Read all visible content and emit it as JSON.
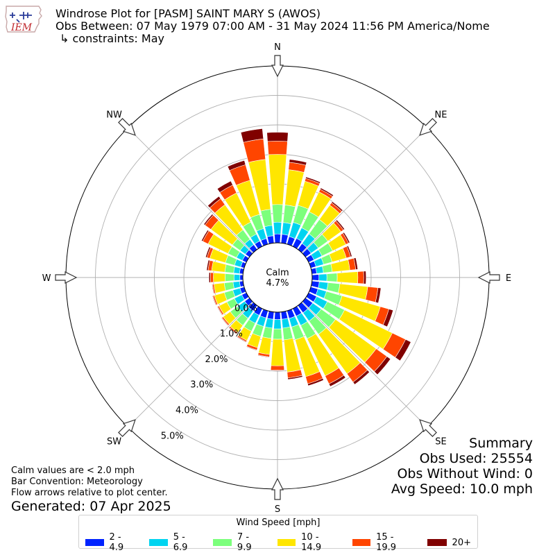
{
  "logo": {
    "text": "IEM",
    "icon": "iowa-state-outline-logo"
  },
  "header": {
    "title": "Windrose Plot for [PASM] SAINT MARY S (AWOS)",
    "subtitle": "Obs Between: 07 May 1979 07:00 AM - 31 May 2024 11:56 PM America/Nome",
    "constraints": "↳ constraints: May"
  },
  "summary": {
    "heading": "Summary",
    "obs_used": "Obs Used: 25554",
    "obs_without_wind": "Obs Without Wind: 0",
    "avg_speed": "Avg Speed: 10.0 mph"
  },
  "notes": {
    "calm": "Calm values are < 2.0 mph",
    "convention": "Bar Convention: Meteorology",
    "arrows": "Flow arrows relative to plot center."
  },
  "generated": "Generated: 07 Apr 2025",
  "chart_data": {
    "type": "windrose",
    "calm_label": "Calm",
    "calm_value": "4.7%",
    "calm_percent": 4.7,
    "radial_unit": "%",
    "radial_ticks": [
      0,
      1,
      2,
      3,
      4,
      5
    ],
    "radial_tick_labels": [
      "0.0%",
      "1.0%",
      "2.0%",
      "3.0%",
      "4.0%",
      "5.0%"
    ],
    "radial_max": 6.0,
    "compass_labels": [
      "N",
      "NE",
      "E",
      "SE",
      "S",
      "SW",
      "W",
      "NW"
    ],
    "directions": [
      0,
      10,
      20,
      30,
      40,
      50,
      60,
      70,
      80,
      90,
      100,
      110,
      120,
      130,
      140,
      150,
      160,
      170,
      180,
      190,
      200,
      210,
      220,
      230,
      240,
      250,
      260,
      270,
      280,
      290,
      300,
      310,
      320,
      330,
      340,
      350
    ],
    "series": [
      {
        "name": "2 - 4.9",
        "color": "#0023ff",
        "values": [
          0.3,
          0.3,
          0.27,
          0.3,
          0.25,
          0.23,
          0.2,
          0.18,
          0.16,
          0.23,
          0.25,
          0.25,
          0.3,
          0.3,
          0.3,
          0.28,
          0.27,
          0.25,
          0.25,
          0.25,
          0.25,
          0.25,
          0.23,
          0.2,
          0.17,
          0.15,
          0.12,
          0.1,
          0.12,
          0.12,
          0.15,
          0.17,
          0.2,
          0.2,
          0.2,
          0.25
        ]
      },
      {
        "name": "5 - 6.9",
        "color": "#00d4f0",
        "values": [
          0.4,
          0.4,
          0.5,
          0.4,
          0.4,
          0.3,
          0.3,
          0.27,
          0.23,
          0.27,
          0.3,
          0.3,
          0.4,
          0.35,
          0.35,
          0.35,
          0.3,
          0.3,
          0.32,
          0.3,
          0.3,
          0.3,
          0.3,
          0.3,
          0.28,
          0.25,
          0.22,
          0.2,
          0.2,
          0.22,
          0.22,
          0.22,
          0.22,
          0.26,
          0.35,
          0.35
        ]
      },
      {
        "name": "7 - 9.9",
        "color": "#7cff7c",
        "values": [
          0.6,
          0.6,
          0.6,
          0.6,
          0.6,
          0.4,
          0.4,
          0.3,
          0.3,
          0.35,
          0.4,
          0.55,
          0.65,
          0.6,
          0.55,
          0.5,
          0.45,
          0.4,
          0.35,
          0.35,
          0.35,
          0.3,
          0.3,
          0.3,
          0.28,
          0.3,
          0.3,
          0.3,
          0.3,
          0.32,
          0.32,
          0.32,
          0.4,
          0.45,
          0.5,
          0.55
        ]
      },
      {
        "name": "10 - 14.9",
        "color": "#ffe600",
        "values": [
          1.7,
          1.2,
          0.85,
          0.75,
          0.6,
          0.55,
          0.5,
          0.5,
          0.6,
          0.7,
          0.95,
          1.35,
          1.8,
          1.7,
          1.65,
          1.4,
          1.3,
          1.1,
          0.9,
          0.55,
          0.4,
          0.35,
          0.3,
          0.3,
          0.3,
          0.35,
          0.35,
          0.4,
          0.45,
          0.55,
          0.75,
          0.9,
          1.05,
          1.1,
          1.2,
          1.7
        ]
      },
      {
        "name": "15 - 19.9",
        "color": "#ff4500",
        "values": [
          0.45,
          0.25,
          0.1,
          0.1,
          0.1,
          0.1,
          0.1,
          0.15,
          0.2,
          0.2,
          0.35,
          0.3,
          0.5,
          0.45,
          0.35,
          0.3,
          0.25,
          0.2,
          0.15,
          0.08,
          0.08,
          0.05,
          0.05,
          0.05,
          0.05,
          0.05,
          0.05,
          0.1,
          0.12,
          0.1,
          0.2,
          0.25,
          0.25,
          0.3,
          0.55,
          0.7
        ]
      },
      {
        "name": "20+",
        "color": "#800000",
        "values": [
          0.3,
          0.1,
          0.05,
          0.05,
          0.05,
          0.05,
          0.05,
          0.05,
          0.07,
          0.08,
          0.1,
          0.15,
          0.2,
          0.15,
          0.1,
          0.1,
          0.07,
          0.05,
          0.02,
          0.02,
          0.02,
          0.02,
          0.02,
          0.02,
          0.02,
          0.02,
          0.02,
          0.05,
          0.05,
          0.05,
          0.05,
          0.05,
          0.1,
          0.15,
          0.15,
          0.35
        ]
      }
    ],
    "legend_title": "Wind Speed [mph]",
    "legend_placement": "bottom-center"
  }
}
